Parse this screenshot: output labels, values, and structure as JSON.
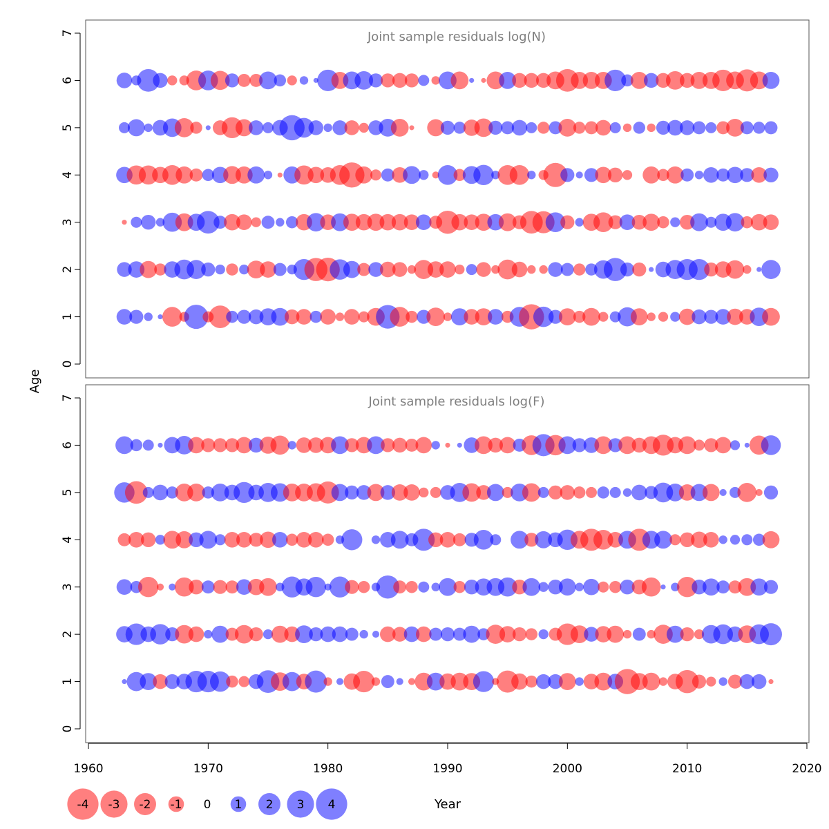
{
  "colors": {
    "positive": "#0000ff",
    "negative": "#ff0000",
    "bubble_opacity": 0.5
  },
  "xlabel": "Year",
  "ylabel": "Age",
  "x_ticks": [
    "1960",
    "1970",
    "1980",
    "1990",
    "2000",
    "2010",
    "2020"
  ],
  "y_ticks": [
    "0",
    "1",
    "2",
    "3",
    "4",
    "5",
    "6",
    "7"
  ],
  "legend": {
    "values": [
      -4,
      -3,
      -2,
      -1,
      0,
      1,
      2,
      3,
      4
    ],
    "labels": [
      "-4",
      "-3",
      "-2",
      "-1",
      "0",
      "1",
      "2",
      "3",
      "4"
    ]
  },
  "chart_data": [
    {
      "type": "bubble",
      "title": "Joint sample residuals log(N)",
      "xlim": [
        1960,
        2020
      ],
      "ylim": [
        0,
        7
      ],
      "x": [
        1963,
        1964,
        1965,
        1966,
        1967,
        1968,
        1969,
        1970,
        1971,
        1972,
        1973,
        1974,
        1975,
        1976,
        1977,
        1978,
        1979,
        1980,
        1981,
        1982,
        1983,
        1984,
        1985,
        1986,
        1987,
        1988,
        1989,
        1990,
        1991,
        1992,
        1993,
        1994,
        1995,
        1996,
        1997,
        1998,
        1999,
        2000,
        2001,
        2002,
        2003,
        2004,
        2005,
        2006,
        2007,
        2008,
        2009,
        2010,
        2011,
        2012,
        2013,
        2014,
        2015,
        2016,
        2017
      ],
      "ages": [
        1,
        2,
        3,
        4,
        5,
        6
      ],
      "residuals": {
        "1": [
          1.0,
          0.8,
          0.3,
          0.1,
          -1.6,
          -0.4,
          2.4,
          -0.5,
          -2.1,
          0.6,
          0.8,
          0.9,
          1.2,
          1.3,
          -0.9,
          -1.0,
          0.6,
          -1.0,
          -0.3,
          -1.0,
          -0.5,
          -1.3,
          2.3,
          -1.6,
          -0.6,
          0.8,
          -1.4,
          -0.3,
          1.2,
          -1.0,
          -1.2,
          1.0,
          -0.6,
          1.6,
          -2.6,
          1.7,
          0.8,
          -1.2,
          -0.6,
          -1.3,
          -0.4,
          0.5,
          1.5,
          -1.2,
          -0.3,
          -0.4,
          0.4,
          -1.1,
          0.9,
          0.8,
          1.0,
          -1.1,
          -1.0,
          1.4,
          -1.3
        ],
        "2": [
          0.9,
          1.1,
          -1.2,
          -0.6,
          1.1,
          1.6,
          1.5,
          0.8,
          0.4,
          -0.6,
          0.4,
          -1.3,
          -1.1,
          0.7,
          0.4,
          1.8,
          -2.2,
          -2.3,
          1.7,
          1.2,
          -0.7,
          0.9,
          -1.0,
          -0.9,
          -0.3,
          -1.5,
          -1.1,
          -1.1,
          -0.4,
          0.5,
          -0.9,
          -0.3,
          -1.6,
          -1.0,
          -0.3,
          -0.3,
          0.9,
          0.7,
          -0.6,
          0.6,
          1.4,
          2.2,
          0.8,
          -0.8,
          0.1,
          1.0,
          1.5,
          1.8,
          1.8,
          -0.8,
          -1.1,
          -1.4,
          -0.3,
          0.1,
          1.5
        ],
        "3": [
          -0.1,
          0.5,
          0.9,
          0.3,
          1.5,
          -1.3,
          1.2,
          2.1,
          0.7,
          -1.1,
          -1.0,
          -0.4,
          0.7,
          0.3,
          0.6,
          -1.1,
          1.4,
          -1.0,
          1.3,
          -1.2,
          -1.1,
          -1.2,
          -1.1,
          -1.1,
          -1.0,
          1.0,
          -0.7,
          -2.2,
          -1.1,
          -1.0,
          -1.2,
          1.1,
          -1.3,
          -0.8,
          -2.1,
          -2.0,
          1.6,
          -0.8,
          0.3,
          -1.2,
          -1.6,
          -0.8,
          1.0,
          -0.9,
          -1.2,
          -0.6,
          0.4,
          -0.9,
          1.3,
          0.5,
          1.2,
          1.4,
          -0.6,
          -1.1,
          -1.0
        ],
        "4": [
          1.1,
          -1.5,
          -1.5,
          -1.1,
          -1.6,
          -1.2,
          -0.7,
          0.6,
          1.1,
          -1.3,
          -1.2,
          1.2,
          0.3,
          -0.1,
          1.2,
          -1.5,
          -1.1,
          -1.0,
          -1.6,
          -2.6,
          -1.2,
          -0.5,
          0.7,
          -1.0,
          1.3,
          0.4,
          -0.2,
          1.6,
          -0.6,
          1.3,
          1.7,
          0.3,
          -1.6,
          -1.6,
          0.3,
          -0.4,
          -2.4,
          0.8,
          0.2,
          0.8,
          -1.1,
          -0.9,
          -0.4,
          0.0,
          -1.2,
          -0.6,
          -1.2,
          0.7,
          0.3,
          1.0,
          0.7,
          1.1,
          0.8,
          -1.0,
          0.9
        ],
        "5": [
          0.5,
          1.2,
          0.3,
          1.0,
          1.4,
          -1.5,
          -0.6,
          0.1,
          -0.9,
          -1.8,
          -1.2,
          0.9,
          0.5,
          1.0,
          2.6,
          1.6,
          0.9,
          0.3,
          0.9,
          -0.9,
          -0.4,
          0.9,
          1.3,
          -1.3,
          -0.1,
          0.0,
          -1.2,
          0.8,
          0.6,
          -1.1,
          -1.4,
          0.8,
          0.7,
          1.0,
          0.5,
          -0.6,
          0.7,
          -1.3,
          -0.6,
          -0.7,
          -1.0,
          0.5,
          -0.3,
          0.6,
          -0.3,
          0.8,
          1.0,
          0.9,
          0.7,
          0.5,
          -0.7,
          -1.3,
          0.7,
          0.6,
          0.7
        ],
        "6": [
          1.0,
          0.4,
          2.1,
          0.9,
          -0.4,
          -0.4,
          -1.6,
          1.6,
          -1.5,
          0.8,
          -0.7,
          -0.7,
          1.3,
          0.6,
          -0.4,
          0.3,
          0.1,
          1.9,
          -1.2,
          1.3,
          1.4,
          0.8,
          -0.8,
          -0.9,
          -0.8,
          0.5,
          -0.3,
          1.3,
          -1.3,
          0.1,
          -0.1,
          -1.3,
          1.2,
          -0.9,
          -0.9,
          -0.9,
          -1.3,
          -2.1,
          -1.2,
          -1.2,
          -1.2,
          1.9,
          0.6,
          -1.2,
          0.9,
          -0.9,
          -1.4,
          -0.9,
          -1.2,
          -1.2,
          -1.9,
          -1.3,
          -2.0,
          -1.3,
          1.2
        ]
      }
    },
    {
      "type": "bubble",
      "title": "Joint sample residuals log(F)",
      "xlim": [
        1960,
        2020
      ],
      "ylim": [
        0,
        7
      ],
      "x": [
        1963,
        1964,
        1965,
        1966,
        1967,
        1968,
        1969,
        1970,
        1971,
        1972,
        1973,
        1974,
        1975,
        1976,
        1977,
        1978,
        1979,
        1980,
        1981,
        1982,
        1983,
        1984,
        1985,
        1986,
        1987,
        1988,
        1989,
        1990,
        1991,
        1992,
        1993,
        1994,
        1995,
        1996,
        1997,
        1998,
        1999,
        2000,
        2001,
        2002,
        2003,
        2004,
        2005,
        2006,
        2007,
        2008,
        2009,
        2010,
        2011,
        2012,
        2013,
        2014,
        2015,
        2016,
        2017
      ],
      "ages": [
        1,
        2,
        3,
        4,
        5,
        6
      ],
      "residuals": {
        "1": [
          0.1,
          1.5,
          1.2,
          -0.9,
          0.9,
          1.0,
          1.9,
          1.9,
          1.7,
          -0.6,
          -0.5,
          0.9,
          2.1,
          -1.4,
          1.5,
          -1.0,
          2.0,
          -0.3,
          0.2,
          -1.1,
          -1.9,
          -0.3,
          0.7,
          0.2,
          -0.2,
          -1.3,
          1.3,
          -1.1,
          -1.3,
          -1.2,
          1.8,
          -0.2,
          -2.0,
          -1.1,
          -0.6,
          0.9,
          0.9,
          -1.2,
          0.3,
          -1.0,
          -1.3,
          1.0,
          -2.6,
          -1.2,
          -1.3,
          -0.3,
          -1.0,
          -2.2,
          -0.8,
          -0.4,
          0.3,
          -0.8,
          0.9,
          0.9,
          -0.1
        ],
        "2": [
          1.1,
          1.9,
          1.0,
          1.7,
          0.8,
          -1.4,
          -1.0,
          0.3,
          1.2,
          -0.7,
          -1.4,
          -0.8,
          0.4,
          -1.2,
          -1.0,
          1.3,
          0.8,
          1.0,
          1.0,
          0.7,
          0.3,
          0.2,
          -1.0,
          -0.9,
          1.0,
          -1.0,
          0.7,
          0.8,
          0.7,
          1.2,
          0.6,
          -1.5,
          -1.1,
          -0.8,
          -0.6,
          0.4,
          -0.7,
          -1.9,
          -1.3,
          0.9,
          -1.1,
          -1.2,
          -0.3,
          0.7,
          -0.3,
          -1.5,
          1.2,
          -0.8,
          -0.4,
          1.4,
          1.6,
          1.0,
          -1.3,
          1.6,
          2.0
        ],
        "3": [
          1.0,
          0.6,
          -1.7,
          -0.2,
          0.2,
          -1.5,
          -0.9,
          0.7,
          -0.8,
          -0.7,
          1.0,
          -1.1,
          -1.3,
          0.3,
          1.8,
          1.2,
          1.7,
          0.2,
          1.8,
          -0.8,
          -0.6,
          0.3,
          2.2,
          -0.7,
          -0.6,
          0.5,
          0.3,
          1.3,
          -0.6,
          0.9,
          1.2,
          1.3,
          1.5,
          -0.9,
          1.3,
          0.4,
          0.9,
          1.2,
          0.3,
          1.1,
          -0.5,
          -0.6,
          0.9,
          -0.9,
          -1.5,
          0.1,
          0.3,
          -1.7,
          0.9,
          1.2,
          0.7,
          -0.7,
          -1.3,
          1.2,
          0.8
        ],
        "4": [
          -0.7,
          -1.0,
          -0.9,
          0.4,
          -1.3,
          -1.2,
          0.9,
          1.3,
          0.5,
          -1.0,
          -1.0,
          -0.8,
          -1.1,
          1.0,
          -0.6,
          -1.0,
          -1.0,
          -0.6,
          0.3,
          1.8,
          0.0,
          0.3,
          1.0,
          1.3,
          0.7,
          2.0,
          -0.9,
          -1.0,
          -0.7,
          0.8,
          1.6,
          0.5,
          0.0,
          1.3,
          -0.8,
          1.2,
          0.9,
          1.7,
          -1.3,
          -2.0,
          -1.6,
          -1.0,
          1.3,
          -2.0,
          1.3,
          1.3,
          -0.5,
          -0.9,
          -1.1,
          -1.0,
          0.3,
          0.4,
          0.5,
          0.6,
          -1.2
        ],
        "5": [
          1.7,
          -2.1,
          0.5,
          1.0,
          0.6,
          -1.3,
          -1.3,
          0.6,
          1.3,
          1.0,
          1.8,
          1.0,
          1.5,
          1.4,
          -1.3,
          -1.3,
          -1.4,
          -2.0,
          1.2,
          0.8,
          0.9,
          -1.2,
          0.9,
          -1.1,
          -1.1,
          -0.4,
          -0.5,
          0.9,
          1.5,
          -1.4,
          -0.9,
          1.2,
          -0.5,
          1.3,
          -1.4,
          0.5,
          -0.8,
          -0.9,
          -0.6,
          -0.5,
          0.6,
          0.5,
          0.3,
          1.0,
          0.7,
          1.6,
          1.3,
          -1.1,
          1.2,
          -1.2,
          0.2,
          0.5,
          -1.5,
          -0.2,
          0.8
        ],
        "6": [
          1.3,
          0.6,
          0.5,
          0.1,
          1.1,
          1.4,
          -1.1,
          -0.8,
          -0.8,
          -0.8,
          -1.1,
          0.9,
          -1.2,
          -1.5,
          0.3,
          -1.0,
          -1.0,
          -1.1,
          1.3,
          -0.8,
          -1.1,
          1.3,
          -0.8,
          -0.9,
          -0.7,
          -1.1,
          0.3,
          -0.1,
          0.1,
          1.0,
          -1.3,
          -0.9,
          -1.1,
          0.7,
          -1.6,
          2.0,
          -1.7,
          1.3,
          0.8,
          1.0,
          -1.3,
          0.8,
          -1.3,
          -0.9,
          -1.3,
          -1.8,
          -1.1,
          -1.3,
          -0.5,
          -0.8,
          -1.1,
          0.4,
          0.1,
          -1.5,
          1.6
        ]
      }
    }
  ]
}
